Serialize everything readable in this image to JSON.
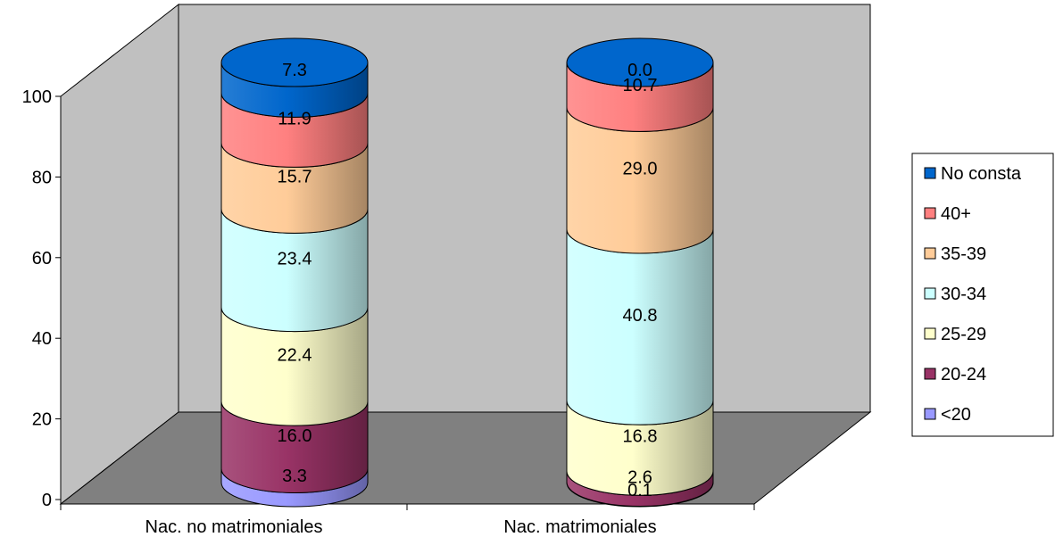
{
  "chart_data": {
    "type": "bar",
    "stacked": true,
    "three_d": true,
    "shape": "cylinder",
    "categories": [
      "Nac. no matrimoniales",
      "Nac. matrimoniales"
    ],
    "series": [
      {
        "name": "<20",
        "color": "#9999ff",
        "values": [
          3.3,
          0.1
        ]
      },
      {
        "name": "20-24",
        "color": "#993366",
        "values": [
          16.0,
          2.6
        ]
      },
      {
        "name": "25-29",
        "color": "#ffffcc",
        "values": [
          22.4,
          16.8
        ]
      },
      {
        "name": "30-34",
        "color": "#ccffff",
        "values": [
          23.4,
          40.8
        ]
      },
      {
        "name": "35-39",
        "color": "#ffcc99",
        "values": [
          15.7,
          29.0
        ]
      },
      {
        "name": "40+",
        "color": "#ff8080",
        "values": [
          11.9,
          10.7
        ]
      },
      {
        "name": "No consta",
        "color": "#0066cc",
        "values": [
          7.3,
          0.0
        ]
      }
    ],
    "data_labels": [
      [
        "3.3",
        "0.1"
      ],
      [
        "16.0",
        "2.6"
      ],
      [
        "22.4",
        "16.8"
      ],
      [
        "23.4",
        "40.8"
      ],
      [
        "15.7",
        "29.0"
      ],
      [
        "11.9",
        "10.7"
      ],
      [
        "7.3",
        "0.0"
      ]
    ],
    "y_ticks": [
      "0",
      "20",
      "40",
      "60",
      "80",
      "100"
    ],
    "ylim": [
      0,
      100
    ],
    "title": "",
    "xlabel": "",
    "ylabel": "",
    "legend_position": "right",
    "grid": false,
    "wall_color": "#c0c0c0",
    "floor_color": "#808080"
  }
}
